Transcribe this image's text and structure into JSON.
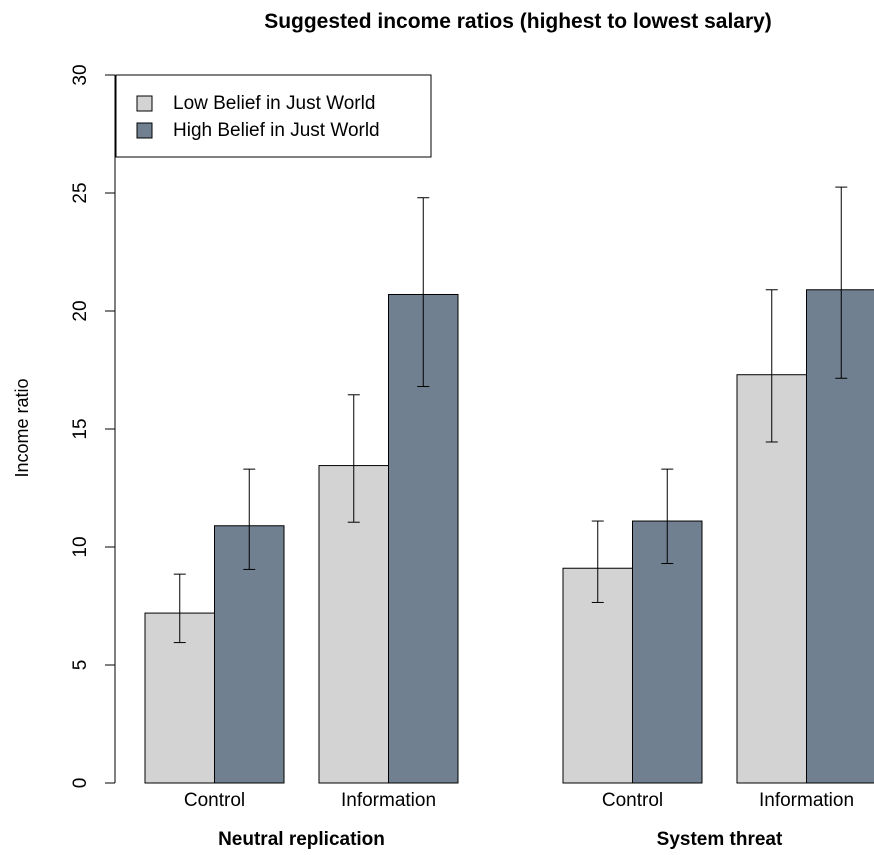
{
  "chart_data": {
    "type": "bar",
    "title": "Suggested income ratios (highest to lowest salary)",
    "ylabel": "Income ratio",
    "xlabel": "",
    "ylim": [
      0,
      30
    ],
    "yticks": [
      0,
      5,
      10,
      15,
      20,
      25,
      30
    ],
    "grid": false,
    "legend_position": "top-left",
    "groups": [
      {
        "label": "Neutral replication",
        "categories": [
          {
            "label": "Control",
            "bars": [
              {
                "series": "Low Belief in Just World",
                "value": 7.2,
                "err_low": 5.95,
                "err_high": 8.85
              },
              {
                "series": "High Belief in Just World",
                "value": 10.9,
                "err_low": 9.05,
                "err_high": 13.3
              }
            ]
          },
          {
            "label": "Information",
            "bars": [
              {
                "series": "Low Belief in Just World",
                "value": 13.45,
                "err_low": 11.05,
                "err_high": 16.45
              },
              {
                "series": "High Belief in Just World",
                "value": 20.7,
                "err_low": 16.8,
                "err_high": 24.8
              }
            ]
          }
        ]
      },
      {
        "label": "System threat",
        "categories": [
          {
            "label": "Control",
            "bars": [
              {
                "series": "Low Belief in Just World",
                "value": 9.1,
                "err_low": 7.65,
                "err_high": 11.1
              },
              {
                "series": "High Belief in Just World",
                "value": 11.1,
                "err_low": 9.3,
                "err_high": 13.3
              }
            ]
          },
          {
            "label": "Information",
            "bars": [
              {
                "series": "Low Belief in Just World",
                "value": 17.3,
                "err_low": 14.45,
                "err_high": 20.9
              },
              {
                "series": "High Belief in Just World",
                "value": 20.9,
                "err_low": 17.15,
                "err_high": 25.25
              }
            ]
          }
        ]
      }
    ],
    "series": [
      {
        "name": "Low Belief in Just World",
        "color": "#d3d3d3"
      },
      {
        "name": "High Belief in Just World",
        "color": "#708090"
      }
    ]
  }
}
